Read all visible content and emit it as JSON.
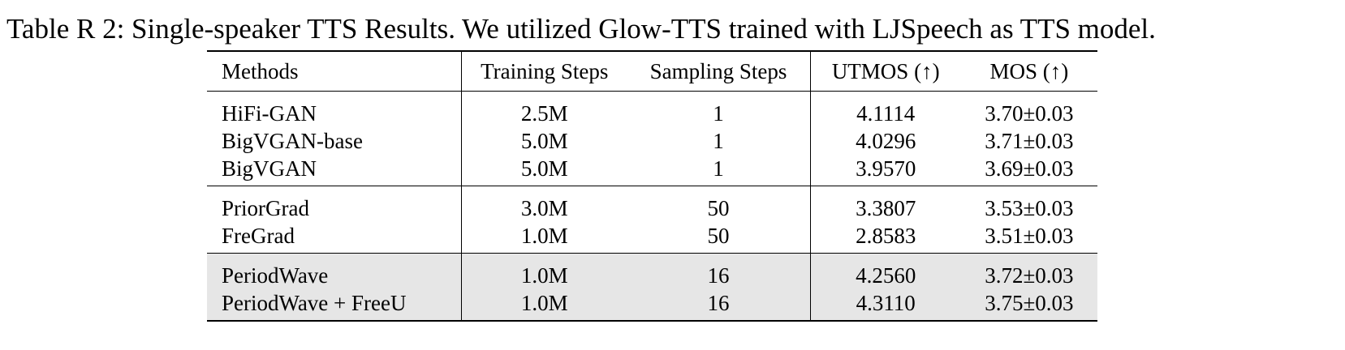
{
  "caption": "Table R 2: Single-speaker TTS Results. We utilized Glow-TTS trained with LJSpeech as TTS model.",
  "table": {
    "headers": {
      "methods": "Methods",
      "training_steps": "Training Steps",
      "sampling_steps": "Sampling Steps",
      "utmos": "UTMOS (↑)",
      "mos": "MOS (↑)"
    },
    "rows": [
      {
        "method": "HiFi-GAN",
        "training_steps": "2.5M",
        "sampling_steps": "1",
        "utmos": "4.1114",
        "mos": "3.70±0.03"
      },
      {
        "method": "BigVGAN-base",
        "training_steps": "5.0M",
        "sampling_steps": "1",
        "utmos": "4.0296",
        "mos": "3.71±0.03"
      },
      {
        "method": "BigVGAN",
        "training_steps": "5.0M",
        "sampling_steps": "1",
        "utmos": "3.9570",
        "mos": "3.69±0.03"
      },
      {
        "method": "PriorGrad",
        "training_steps": "3.0M",
        "sampling_steps": "50",
        "utmos": "3.3807",
        "mos": "3.53±0.03"
      },
      {
        "method": "FreGrad",
        "training_steps": "1.0M",
        "sampling_steps": "50",
        "utmos": "2.8583",
        "mos": "3.51±0.03"
      },
      {
        "method": "PeriodWave",
        "training_steps": "1.0M",
        "sampling_steps": "16",
        "utmos": "4.2560",
        "mos": "3.72±0.03"
      },
      {
        "method": "PeriodWave + FreeU",
        "training_steps": "1.0M",
        "sampling_steps": "16",
        "utmos": "4.3110",
        "mos": "3.75±0.03"
      }
    ],
    "shaded_row_color": "#e6e6e6"
  }
}
